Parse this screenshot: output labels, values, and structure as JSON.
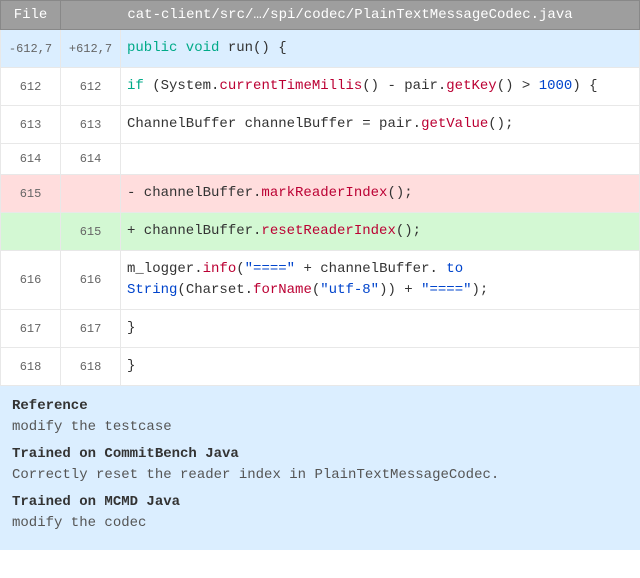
{
  "header": {
    "file_col": "File",
    "path": "cat-client/src/…/spi/codec/PlainTextMessageCodec.java"
  },
  "hunk": {
    "old": "-612,7",
    "new": "+612,7",
    "sig": "public void run() {"
  },
  "rows": [
    {
      "old": "612",
      "new": "612",
      "kind": "ctx"
    },
    {
      "old": "613",
      "new": "613",
      "kind": "ctx"
    },
    {
      "old": "614",
      "new": "614",
      "kind": "ctx"
    },
    {
      "old": "615",
      "new": "",
      "kind": "del"
    },
    {
      "old": "",
      "new": "615",
      "kind": "add"
    },
    {
      "old": "616",
      "new": "616",
      "kind": "ctx"
    },
    {
      "old": "617",
      "new": "617",
      "kind": "ctx"
    },
    {
      "old": "618",
      "new": "618",
      "kind": "ctx"
    }
  ],
  "code": {
    "sig_kw": "public void",
    "sig_rest": " run() {",
    "r612": {
      "ifkw": "if",
      "a": " (System.",
      "fn1": "currentTimeMillis",
      "b": "() - pair.",
      "fn2": "getKey",
      "c": "() > ",
      "num": "1000",
      "d": ") {"
    },
    "r613": {
      "a": "ChannelBuffer channelBuffer = pair.",
      "fn": "getValue",
      "b": "();"
    },
    "r614": "",
    "del": {
      "a": "- channelBuffer.",
      "fn": "markReaderIndex",
      "b": "();"
    },
    "add": {
      "a": "+ channelBuffer.",
      "fn": "resetReaderIndex",
      "b": "();"
    },
    "r616": {
      "a": "m_logger.",
      "fn1": "info",
      "b": "(",
      "s1": "\"====\"",
      "c": " + channelBuffer. ",
      "fn2": "to String",
      "d": "(Charset.",
      "fn3": "forName",
      "e": "(",
      "s2": "\"utf-8\"",
      "f": ")) + ",
      "s3": "\"====\"",
      "g": ");"
    },
    "r617": "}",
    "r618": "}"
  },
  "bottom": {
    "ref_h": "Reference",
    "ref_t": "modify the testcase",
    "cb_h": "Trained on CommitBench Java",
    "cb_t": "Correctly reset the reader index in PlainTextMessageCodec.",
    "mc_h": "Trained on MCMD Java",
    "mc_t": "modify the codec"
  },
  "colors": {
    "header_bg": "#9e9e9e",
    "hunk_bg": "#dbeeff",
    "del_bg": "#fdd",
    "add_bg": "#d3f8d3"
  }
}
